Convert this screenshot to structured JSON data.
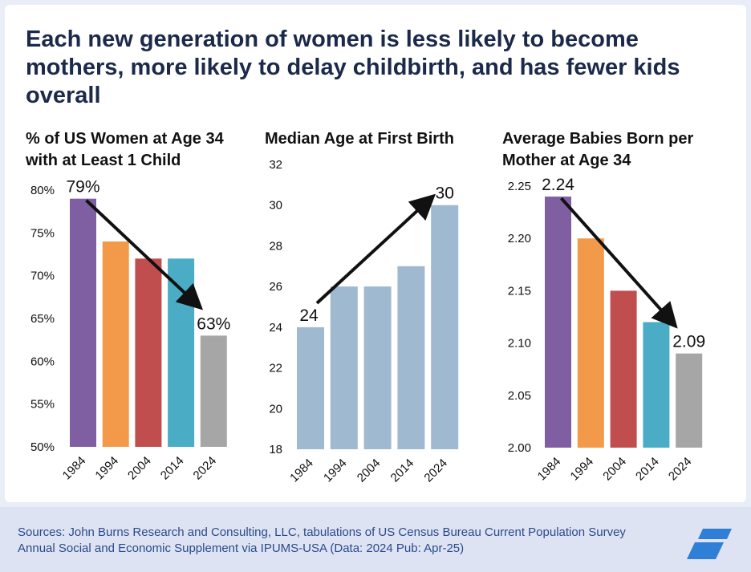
{
  "headline": "Each new generation of women is less likely to become mothers, more likely to delay childbirth, and has fewer kids overall",
  "chart_data": [
    {
      "type": "bar",
      "title_lines": [
        "% of US Women at Age 34",
        "with at Least 1 Child"
      ],
      "categories": [
        "1984",
        "1994",
        "2004",
        "2014",
        "2024"
      ],
      "values": [
        79,
        74,
        72,
        72,
        63
      ],
      "ylim": [
        50,
        80
      ],
      "yticks": [
        "50%",
        "55%",
        "60%",
        "65%",
        "70%",
        "75%",
        "80%"
      ],
      "ytick_values": [
        50,
        55,
        60,
        65,
        70,
        75,
        80
      ],
      "colors": [
        "#7f5fa2",
        "#f39a4a",
        "#c04e4e",
        "#4bacc6",
        "#a6a6a6"
      ],
      "annotations": [
        {
          "category": "1984",
          "label": "79%"
        },
        {
          "category": "2024",
          "label": "63%"
        }
      ],
      "trend_arrow": {
        "from": "1984",
        "to": "2024",
        "direction": "down"
      }
    },
    {
      "type": "bar",
      "title_lines": [
        "Median Age at First Birth"
      ],
      "categories": [
        "1984",
        "1994",
        "2004",
        "2014",
        "2024"
      ],
      "values": [
        24,
        26,
        26,
        27,
        30
      ],
      "ylim": [
        18,
        32
      ],
      "yticks": [
        "18",
        "20",
        "22",
        "24",
        "26",
        "28",
        "30",
        "32"
      ],
      "ytick_values": [
        18,
        20,
        22,
        24,
        26,
        28,
        30,
        32
      ],
      "colors": [
        "#9fb9d0",
        "#9fb9d0",
        "#9fb9d0",
        "#9fb9d0",
        "#9fb9d0"
      ],
      "annotations": [
        {
          "category": "1984",
          "label": "24"
        },
        {
          "category": "2024",
          "label": "30"
        }
      ],
      "trend_arrow": {
        "from": "1984",
        "to": "2024",
        "direction": "up"
      }
    },
    {
      "type": "bar",
      "title_lines": [
        "Average Babies Born per",
        "Mother at Age 34"
      ],
      "categories": [
        "1984",
        "1994",
        "2004",
        "2014",
        "2024"
      ],
      "values": [
        2.24,
        2.2,
        2.15,
        2.12,
        2.09
      ],
      "ylim": [
        2.0,
        2.25
      ],
      "yticks": [
        "2.00",
        "2.05",
        "2.10",
        "2.15",
        "2.20",
        "2.25"
      ],
      "ytick_values": [
        2.0,
        2.05,
        2.1,
        2.15,
        2.2,
        2.25
      ],
      "colors": [
        "#7f5fa2",
        "#f39a4a",
        "#c04e4e",
        "#4bacc6",
        "#a6a6a6"
      ],
      "annotations": [
        {
          "category": "1984",
          "label": "2.24"
        },
        {
          "category": "2024",
          "label": "2.09"
        }
      ],
      "trend_arrow": {
        "from": "1984",
        "to": "2024",
        "direction": "down"
      }
    }
  ],
  "footer": {
    "source": "Sources: John Burns Research and Consulting, LLC, tabulations of US Census Bureau Current Population Survey Annual Social and Economic Supplement via IPUMS-USA (Data: 2024 Pub: Apr-25)",
    "logo_icon": "brand-logo-icon",
    "logo_color": "#2f7fd6"
  }
}
